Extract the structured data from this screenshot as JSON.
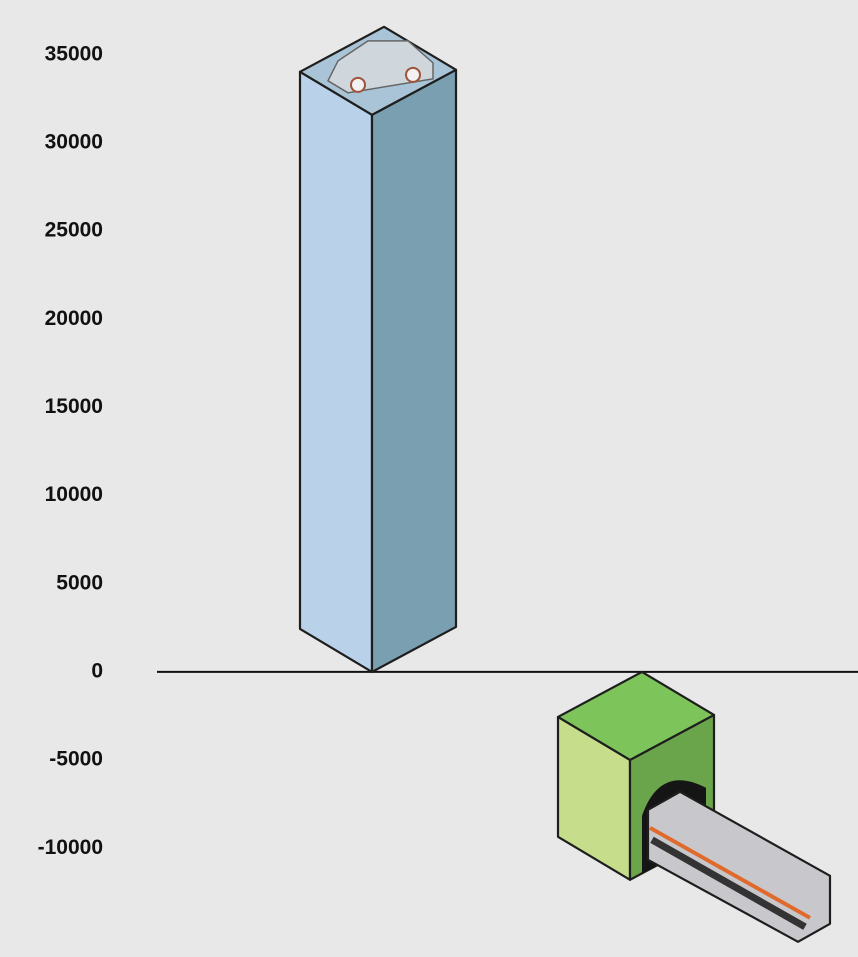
{
  "chart_data": {
    "type": "bar3d",
    "categories": [
      null,
      null
    ],
    "values": [
      31600,
      -6800
    ],
    "colors": [
      [
        "#b9d2e9",
        "#7a9fb1",
        "#aac4d7"
      ],
      [
        "#c6de8b",
        "#6ba54b",
        "#7dc45b"
      ]
    ],
    "ylim": [
      -16000,
      38000
    ],
    "yticks": [
      35000,
      30000,
      25000,
      20000,
      15000,
      10000,
      5000,
      0,
      -5000,
      -10000
    ],
    "grid": false
  }
}
